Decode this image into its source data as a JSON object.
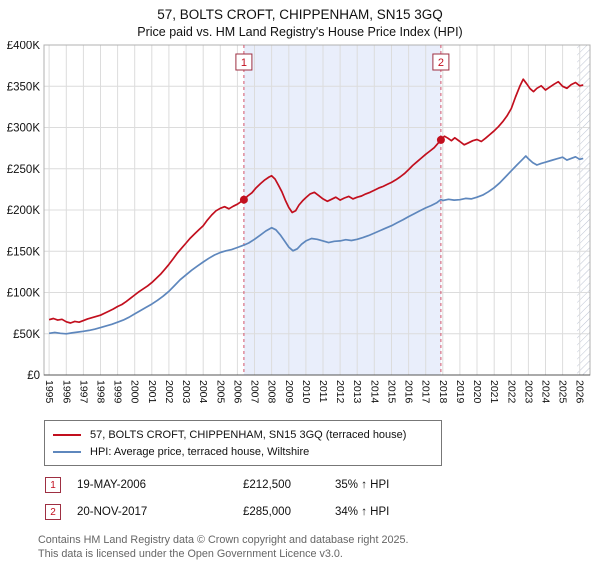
{
  "title": "57, BOLTS CROFT, CHIPPENHAM, SN15 3GQ",
  "subtitle": "Price paid vs. HM Land Registry's House Price Index (HPI)",
  "colors": {
    "property_line": "#c20f1e",
    "hpi_line": "#5e87bd",
    "sale_box_border": "#9e2f42",
    "sale_dashed_line": "#d4556b",
    "shaded_band": "#e9eefb",
    "grid": "#dcdcdc"
  },
  "annotations": [
    {
      "num": "1",
      "date": "19-MAY-2006",
      "price": "£212,500",
      "hpi": "35% ↑ HPI"
    },
    {
      "num": "2",
      "date": "20-NOV-2017",
      "price": "£285,000",
      "hpi": "34% ↑ HPI"
    }
  ],
  "footer": {
    "line1": "Contains HM Land Registry data © Crown copyright and database right 2025.",
    "line2": "This data is licensed under the Open Government Licence v3.0."
  },
  "chart_data": {
    "type": "line",
    "title": "57, BOLTS CROFT, CHIPPENHAM, SN15 3GQ — Price paid vs. HPI",
    "xlabel": "",
    "ylabel": "",
    "xlim": [
      1994.7,
      2026.6
    ],
    "ylim": [
      0,
      400000
    ],
    "grid": true,
    "legend_position": "bottom",
    "y_tick_values": [
      0,
      50000,
      100000,
      150000,
      200000,
      250000,
      300000,
      350000,
      400000
    ],
    "y_tick_labels": [
      "£0",
      "£50K",
      "£100K",
      "£150K",
      "£200K",
      "£250K",
      "£300K",
      "£350K",
      "£400K"
    ],
    "x_ticks": [
      1995,
      1996,
      1997,
      1998,
      1999,
      2000,
      2001,
      2002,
      2003,
      2004,
      2005,
      2006,
      2007,
      2008,
      2009,
      2010,
      2011,
      2012,
      2013,
      2014,
      2015,
      2016,
      2017,
      2018,
      2019,
      2020,
      2021,
      2022,
      2023,
      2024,
      2025,
      2026
    ],
    "shaded_region": [
      2006.38,
      2017.89
    ],
    "hatch_region": [
      2025.85,
      2026.6
    ],
    "sale_markers": [
      {
        "label": "1",
        "x": 2006.38,
        "y": 212500
      },
      {
        "label": "2",
        "x": 2017.89,
        "y": 285000
      }
    ],
    "series": [
      {
        "name": "57, BOLTS CROFT, CHIPPENHAM, SN15 3GQ (terraced house)",
        "color": "#c20f1e",
        "points": [
          [
            1995.0,
            67000
          ],
          [
            1995.25,
            68500
          ],
          [
            1995.5,
            66500
          ],
          [
            1995.75,
            67500
          ],
          [
            1996.0,
            64500
          ],
          [
            1996.25,
            63000
          ],
          [
            1996.5,
            65000
          ],
          [
            1996.75,
            64000
          ],
          [
            1997.0,
            66000
          ],
          [
            1997.25,
            68000
          ],
          [
            1997.5,
            69500
          ],
          [
            1997.75,
            71000
          ],
          [
            1998.0,
            72500
          ],
          [
            1998.25,
            75000
          ],
          [
            1998.5,
            77500
          ],
          [
            1998.75,
            80000
          ],
          [
            1999.0,
            83000
          ],
          [
            1999.25,
            85500
          ],
          [
            1999.5,
            89000
          ],
          [
            1999.75,
            93000
          ],
          [
            2000.0,
            97000
          ],
          [
            2000.25,
            101000
          ],
          [
            2000.5,
            104500
          ],
          [
            2000.75,
            108000
          ],
          [
            2001.0,
            112000
          ],
          [
            2001.25,
            117000
          ],
          [
            2001.5,
            122000
          ],
          [
            2001.75,
            128000
          ],
          [
            2002.0,
            134000
          ],
          [
            2002.25,
            141000
          ],
          [
            2002.5,
            148000
          ],
          [
            2002.75,
            154000
          ],
          [
            2003.0,
            160000
          ],
          [
            2003.25,
            166000
          ],
          [
            2003.5,
            171000
          ],
          [
            2003.75,
            176000
          ],
          [
            2004.0,
            181000
          ],
          [
            2004.25,
            188000
          ],
          [
            2004.5,
            194000
          ],
          [
            2004.75,
            199000
          ],
          [
            2005.0,
            202000
          ],
          [
            2005.25,
            204000
          ],
          [
            2005.5,
            201500
          ],
          [
            2005.75,
            204500
          ],
          [
            2006.0,
            207000
          ],
          [
            2006.38,
            212500
          ],
          [
            2006.6,
            217000
          ],
          [
            2006.85,
            221000
          ],
          [
            2007.1,
            227000
          ],
          [
            2007.35,
            232000
          ],
          [
            2007.6,
            236500
          ],
          [
            2007.85,
            240000
          ],
          [
            2008.0,
            241500
          ],
          [
            2008.2,
            237500
          ],
          [
            2008.4,
            230000
          ],
          [
            2008.6,
            222000
          ],
          [
            2008.8,
            212000
          ],
          [
            2009.0,
            203000
          ],
          [
            2009.2,
            197000
          ],
          [
            2009.4,
            199000
          ],
          [
            2009.6,
            206000
          ],
          [
            2009.8,
            211000
          ],
          [
            2010.0,
            215000
          ],
          [
            2010.25,
            219500
          ],
          [
            2010.5,
            221500
          ],
          [
            2010.75,
            217500
          ],
          [
            2011.0,
            213500
          ],
          [
            2011.25,
            210500
          ],
          [
            2011.5,
            213000
          ],
          [
            2011.75,
            215500
          ],
          [
            2012.0,
            212000
          ],
          [
            2012.25,
            214500
          ],
          [
            2012.5,
            216500
          ],
          [
            2012.75,
            213500
          ],
          [
            2013.0,
            215500
          ],
          [
            2013.25,
            217000
          ],
          [
            2013.5,
            219500
          ],
          [
            2013.75,
            221500
          ],
          [
            2014.0,
            224000
          ],
          [
            2014.25,
            226500
          ],
          [
            2014.5,
            228500
          ],
          [
            2014.75,
            231000
          ],
          [
            2015.0,
            233500
          ],
          [
            2015.25,
            236500
          ],
          [
            2015.5,
            240000
          ],
          [
            2015.75,
            244000
          ],
          [
            2016.0,
            249000
          ],
          [
            2016.25,
            254000
          ],
          [
            2016.5,
            258500
          ],
          [
            2016.75,
            263000
          ],
          [
            2017.0,
            267500
          ],
          [
            2017.25,
            271500
          ],
          [
            2017.5,
            275500
          ],
          [
            2017.89,
            285000
          ],
          [
            2018.1,
            289500
          ],
          [
            2018.3,
            287000
          ],
          [
            2018.5,
            284000
          ],
          [
            2018.7,
            287500
          ],
          [
            2019.0,
            283000
          ],
          [
            2019.25,
            279000
          ],
          [
            2019.5,
            281500
          ],
          [
            2019.75,
            284000
          ],
          [
            2020.0,
            285500
          ],
          [
            2020.25,
            283000
          ],
          [
            2020.5,
            287000
          ],
          [
            2020.75,
            291500
          ],
          [
            2021.0,
            296000
          ],
          [
            2021.25,
            301000
          ],
          [
            2021.5,
            307000
          ],
          [
            2021.75,
            314000
          ],
          [
            2022.0,
            323000
          ],
          [
            2022.25,
            337000
          ],
          [
            2022.5,
            350000
          ],
          [
            2022.7,
            358500
          ],
          [
            2022.9,
            353000
          ],
          [
            2023.1,
            347000
          ],
          [
            2023.3,
            343500
          ],
          [
            2023.5,
            347500
          ],
          [
            2023.75,
            350500
          ],
          [
            2024.0,
            345500
          ],
          [
            2024.25,
            349000
          ],
          [
            2024.5,
            352500
          ],
          [
            2024.75,
            355500
          ],
          [
            2025.0,
            350000
          ],
          [
            2025.25,
            347500
          ],
          [
            2025.5,
            352000
          ],
          [
            2025.75,
            354500
          ],
          [
            2026.0,
            350500
          ],
          [
            2026.2,
            351500
          ]
        ]
      },
      {
        "name": "HPI: Average price, terraced house, Wiltshire",
        "color": "#5e87bd",
        "points": [
          [
            1995.0,
            50500
          ],
          [
            1995.33,
            51500
          ],
          [
            1995.66,
            50500
          ],
          [
            1996.0,
            50000
          ],
          [
            1996.33,
            51000
          ],
          [
            1996.66,
            52000
          ],
          [
            1997.0,
            53000
          ],
          [
            1997.33,
            54000
          ],
          [
            1997.66,
            55500
          ],
          [
            1998.0,
            57500
          ],
          [
            1998.33,
            59500
          ],
          [
            1998.66,
            61500
          ],
          [
            1999.0,
            64000
          ],
          [
            1999.33,
            66500
          ],
          [
            1999.66,
            70000
          ],
          [
            2000.0,
            74000
          ],
          [
            2000.33,
            78000
          ],
          [
            2000.66,
            82000
          ],
          [
            2001.0,
            86000
          ],
          [
            2001.33,
            90500
          ],
          [
            2001.66,
            95500
          ],
          [
            2002.0,
            101500
          ],
          [
            2002.33,
            108500
          ],
          [
            2002.66,
            115500
          ],
          [
            2003.0,
            121500
          ],
          [
            2003.33,
            127000
          ],
          [
            2003.66,
            132000
          ],
          [
            2004.0,
            137000
          ],
          [
            2004.33,
            141500
          ],
          [
            2004.66,
            145500
          ],
          [
            2005.0,
            148500
          ],
          [
            2005.33,
            150500
          ],
          [
            2005.66,
            152000
          ],
          [
            2006.0,
            154500
          ],
          [
            2006.38,
            157400
          ],
          [
            2006.66,
            160000
          ],
          [
            2007.0,
            164500
          ],
          [
            2007.33,
            169500
          ],
          [
            2007.66,
            174500
          ],
          [
            2008.0,
            178500
          ],
          [
            2008.25,
            176000
          ],
          [
            2008.5,
            170000
          ],
          [
            2008.75,
            162500
          ],
          [
            2009.0,
            155000
          ],
          [
            2009.25,
            150500
          ],
          [
            2009.5,
            153000
          ],
          [
            2009.75,
            158500
          ],
          [
            2010.0,
            162500
          ],
          [
            2010.33,
            165500
          ],
          [
            2010.66,
            164500
          ],
          [
            2011.0,
            162500
          ],
          [
            2011.33,
            160500
          ],
          [
            2011.66,
            162000
          ],
          [
            2012.0,
            162500
          ],
          [
            2012.33,
            164000
          ],
          [
            2012.66,
            163000
          ],
          [
            2013.0,
            164500
          ],
          [
            2013.33,
            166500
          ],
          [
            2013.66,
            169000
          ],
          [
            2014.0,
            172000
          ],
          [
            2014.33,
            175000
          ],
          [
            2014.66,
            178000
          ],
          [
            2015.0,
            181000
          ],
          [
            2015.33,
            184500
          ],
          [
            2015.66,
            188000
          ],
          [
            2016.0,
            192000
          ],
          [
            2016.33,
            195500
          ],
          [
            2016.66,
            199000
          ],
          [
            2017.0,
            202500
          ],
          [
            2017.33,
            205500
          ],
          [
            2017.66,
            209000
          ],
          [
            2017.89,
            212700
          ],
          [
            2018.0,
            211500
          ],
          [
            2018.33,
            213000
          ],
          [
            2018.66,
            212000
          ],
          [
            2019.0,
            212500
          ],
          [
            2019.33,
            214000
          ],
          [
            2019.66,
            213500
          ],
          [
            2020.0,
            215500
          ],
          [
            2020.33,
            218000
          ],
          [
            2020.66,
            222000
          ],
          [
            2021.0,
            227000
          ],
          [
            2021.33,
            233000
          ],
          [
            2021.66,
            240000
          ],
          [
            2022.0,
            247500
          ],
          [
            2022.33,
            254500
          ],
          [
            2022.66,
            261500
          ],
          [
            2022.85,
            265500
          ],
          [
            2023.0,
            262000
          ],
          [
            2023.25,
            257500
          ],
          [
            2023.5,
            254500
          ],
          [
            2023.75,
            256500
          ],
          [
            2024.0,
            258000
          ],
          [
            2024.33,
            260000
          ],
          [
            2024.66,
            262000
          ],
          [
            2025.0,
            264000
          ],
          [
            2025.25,
            260500
          ],
          [
            2025.5,
            262500
          ],
          [
            2025.75,
            264500
          ],
          [
            2026.0,
            261500
          ],
          [
            2026.2,
            262500
          ]
        ]
      }
    ]
  }
}
